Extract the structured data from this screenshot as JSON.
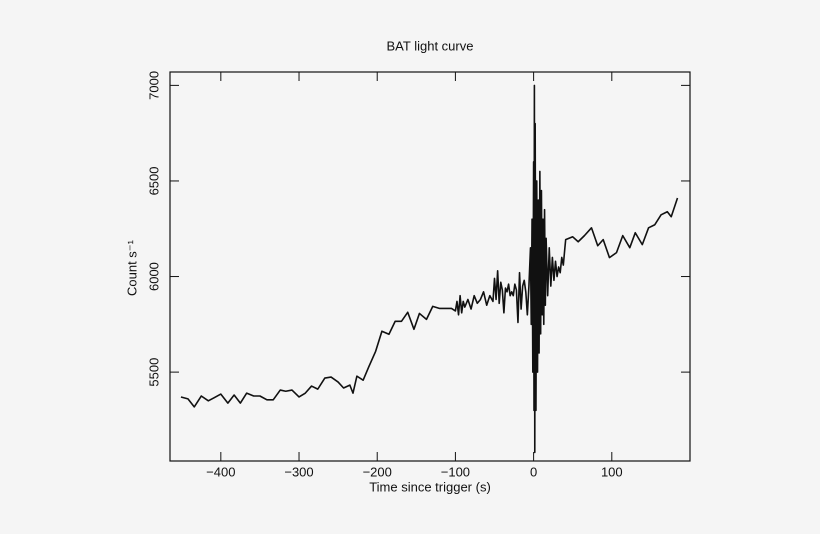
{
  "chart_data": {
    "type": "line",
    "title": "BAT light curve",
    "xlabel": "Time since trigger (s)",
    "ylabel": "Count s⁻¹",
    "xlim": [
      -465,
      200
    ],
    "ylim": [
      5035,
      7070
    ],
    "xticks": [
      {
        "value": -400,
        "label": "−400"
      },
      {
        "value": -300,
        "label": "−300"
      },
      {
        "value": -200,
        "label": "−200"
      },
      {
        "value": -100,
        "label": "−100"
      },
      0,
      100
    ],
    "yticks": [
      5500,
      6000,
      6500,
      7000
    ],
    "series": [
      {
        "color": "#111111",
        "x": [
          -451,
          -442,
          -434,
          -425,
          -416,
          -409,
          -400,
          -391,
          -383,
          -375,
          -367,
          -358,
          -350,
          -341,
          -333,
          -324,
          -317,
          -309,
          -300,
          -292,
          -284,
          -276,
          -267,
          -259,
          -250,
          -243,
          -235,
          -231,
          -226,
          -218,
          -211,
          -202,
          -194,
          -185,
          -177,
          -169,
          -161,
          -153,
          -146,
          -137,
          -129,
          -120,
          -113,
          -105,
          -100,
          -98,
          -96,
          -94,
          -92,
          -90,
          -88,
          -84,
          -80,
          -76,
          -72,
          -68,
          -64,
          -60,
          -56,
          -52,
          -50,
          -48,
          -46,
          -44,
          -42,
          -40,
          -38,
          -36,
          -34,
          -32,
          -30,
          -28,
          -26,
          -24,
          -22,
          -20,
          -18,
          -16,
          -14,
          -12,
          -10,
          -8,
          -6,
          -4,
          -3,
          -2,
          -1,
          0,
          0.5,
          1,
          1.5,
          2,
          3,
          4,
          5,
          6,
          7,
          8,
          9,
          10,
          11,
          12,
          13,
          14,
          15,
          16,
          18,
          20,
          22,
          24,
          26,
          28,
          30,
          32,
          34,
          36,
          38,
          40,
          41,
          50,
          57,
          65,
          74,
          82,
          89,
          97,
          106,
          114,
          123,
          130,
          139,
          147,
          155,
          163,
          171,
          176,
          184
        ],
        "values": [
          5370,
          5360,
          5318,
          5375,
          5350,
          5365,
          5385,
          5338,
          5380,
          5338,
          5390,
          5375,
          5375,
          5355,
          5355,
          5406,
          5400,
          5406,
          5370,
          5390,
          5427,
          5411,
          5469,
          5474,
          5448,
          5417,
          5432,
          5390,
          5479,
          5458,
          5526,
          5609,
          5714,
          5698,
          5766,
          5766,
          5813,
          5724,
          5807,
          5776,
          5844,
          5833,
          5833,
          5833,
          5820,
          5870,
          5800,
          5900,
          5810,
          5870,
          5840,
          5880,
          5830,
          5900,
          5860,
          5880,
          5920,
          5850,
          5900,
          5870,
          5990,
          5880,
          6030,
          5860,
          5970,
          5930,
          5810,
          5940,
          5920,
          5960,
          5900,
          5920,
          5900,
          5960,
          5930,
          5760,
          6020,
          5830,
          5950,
          5980,
          5920,
          5800,
          5950,
          6150,
          5750,
          6300,
          5500,
          6600,
          5300,
          7000,
          5080,
          6800,
          5300,
          6500,
          5500,
          6400,
          5600,
          6550,
          5700,
          6450,
          5800,
          6300,
          5750,
          6350,
          5850,
          6200,
          5900,
          6150,
          5950,
          6100,
          5980,
          6080,
          6000,
          6050,
          6020,
          6100,
          6060,
          6150,
          6193,
          6208,
          6182,
          6214,
          6255,
          6161,
          6193,
          6099,
          6125,
          6214,
          6151,
          6229,
          6167,
          6255,
          6271,
          6323,
          6339,
          6313,
          6411
        ]
      }
    ]
  }
}
